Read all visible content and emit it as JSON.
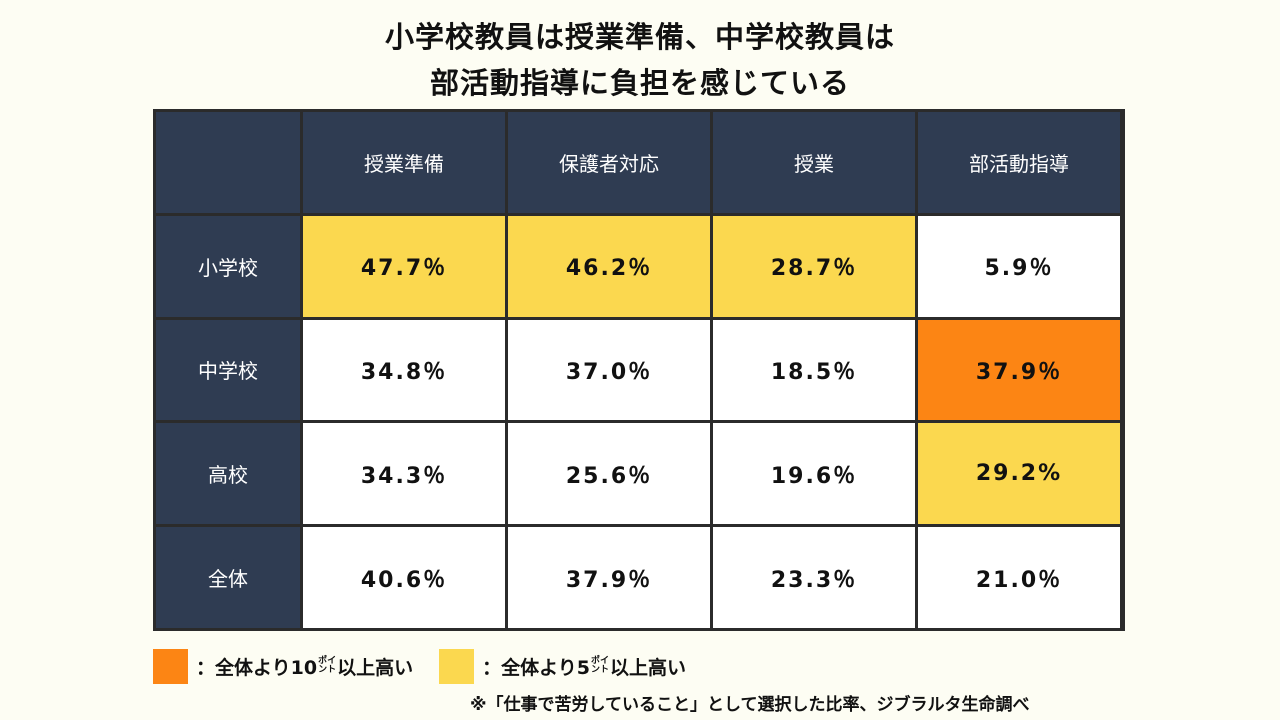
{
  "title_line1": "小学校教員は授業準備、中学校教員は",
  "title_line2": "部活動指導に負担を感じている",
  "chart_data": {
    "type": "table",
    "columns": [
      "授業準備",
      "保護者対応",
      "授業",
      "部活動指導"
    ],
    "rows": [
      {
        "label": "小学校",
        "values": [
          "47.7％",
          "46.2％",
          "28.7％",
          "5.9％"
        ],
        "highlight": [
          "yellow",
          "yellow",
          "yellow",
          "none"
        ]
      },
      {
        "label": "中学校",
        "values": [
          "34.8％",
          "37.0％",
          "18.5％",
          "37.9％"
        ],
        "highlight": [
          "none",
          "none",
          "none",
          "orange"
        ]
      },
      {
        "label": "高校",
        "values": [
          "34.3％",
          "25.6％",
          "19.6％",
          "29.2%"
        ],
        "highlight": [
          "none",
          "none",
          "none",
          "yellow"
        ]
      },
      {
        "label": "全体",
        "values": [
          "40.6％",
          "37.9％",
          "23.3％",
          "21.0％"
        ],
        "highlight": [
          "none",
          "none",
          "none",
          "none"
        ]
      }
    ],
    "colors": {
      "orange": "#fc8514",
      "yellow": "#fbd84f",
      "header": "#2f3c52"
    }
  },
  "legend": {
    "orange_prefix": "：全体より10",
    "orange_suffix": "以上高い",
    "yellow_prefix": "：全体より5",
    "yellow_suffix": "以上高い",
    "point_top": "ポイ",
    "point_bottom": "ント"
  },
  "note": "※「仕事で苦労していること」として選択した比率、ジブラルタ生命調べ"
}
